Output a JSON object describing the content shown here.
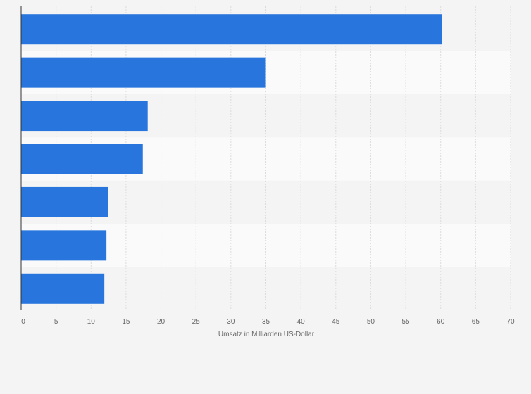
{
  "chart_data": {
    "type": "bar",
    "orientation": "horizontal",
    "categories": [
      "",
      "",
      "",
      "",
      "",
      "",
      ""
    ],
    "values": [
      60.2,
      35.0,
      18.1,
      17.4,
      12.4,
      12.2,
      11.9
    ],
    "xlabel": "Umsatz in Milliarden US-Dollar",
    "ylabel": "",
    "xlim": [
      0,
      70
    ],
    "xticks": [
      "0",
      "5",
      "10",
      "15",
      "20",
      "25",
      "30",
      "35",
      "40",
      "45",
      "50",
      "55",
      "60",
      "65",
      "70"
    ],
    "grid": true,
    "bar_color": "#2876dd"
  }
}
